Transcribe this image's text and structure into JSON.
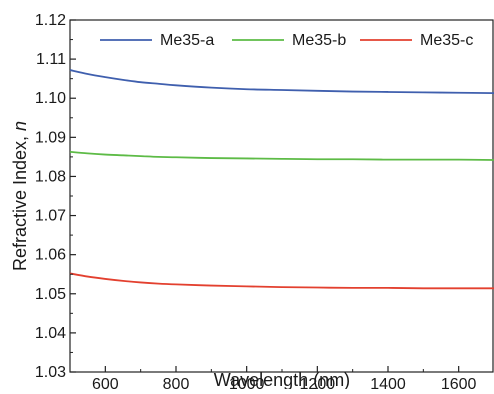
{
  "chart_data": {
    "type": "line",
    "xlabel": "Wavelength (nm)",
    "ylabel": "Refractive Index, n",
    "xlim": [
      500,
      1700
    ],
    "ylim": [
      1.03,
      1.12
    ],
    "x_ticks": [
      600,
      800,
      1000,
      1200,
      1400,
      1600
    ],
    "y_ticks": [
      1.03,
      1.04,
      1.05,
      1.06,
      1.07,
      1.08,
      1.09,
      1.1,
      1.11,
      1.12
    ],
    "x_tick_labels": [
      "600",
      "800",
      "1000",
      "1200",
      "1400",
      "1600"
    ],
    "y_tick_labels": [
      "1.03",
      "1.04",
      "1.05",
      "1.06",
      "1.07",
      "1.08",
      "1.09",
      "1.10",
      "1.11",
      "1.12"
    ],
    "legend_position": "top",
    "grid": false,
    "x": [
      500,
      550,
      600,
      650,
      700,
      750,
      800,
      900,
      1000,
      1100,
      1200,
      1300,
      1400,
      1500,
      1600,
      1700
    ],
    "series": [
      {
        "name": "Me35-a",
        "color": "#3f5fae",
        "values": [
          1.1072,
          1.1062,
          1.1054,
          1.1047,
          1.1041,
          1.1037,
          1.1033,
          1.1027,
          1.1023,
          1.1021,
          1.1019,
          1.1017,
          1.1016,
          1.1015,
          1.1014,
          1.1013
        ]
      },
      {
        "name": "Me35-b",
        "color": "#5dbb46",
        "values": [
          1.0863,
          1.0859,
          1.0856,
          1.0854,
          1.0852,
          1.085,
          1.0849,
          1.0847,
          1.0846,
          1.0845,
          1.0844,
          1.0844,
          1.0843,
          1.0843,
          1.0843,
          1.0842
        ]
      },
      {
        "name": "Me35-c",
        "color": "#e3402f",
        "values": [
          1.0552,
          1.0544,
          1.0538,
          1.0533,
          1.0529,
          1.0526,
          1.0524,
          1.0521,
          1.0519,
          1.0517,
          1.0516,
          1.0515,
          1.0515,
          1.0514,
          1.0514,
          1.0514
        ]
      }
    ]
  }
}
